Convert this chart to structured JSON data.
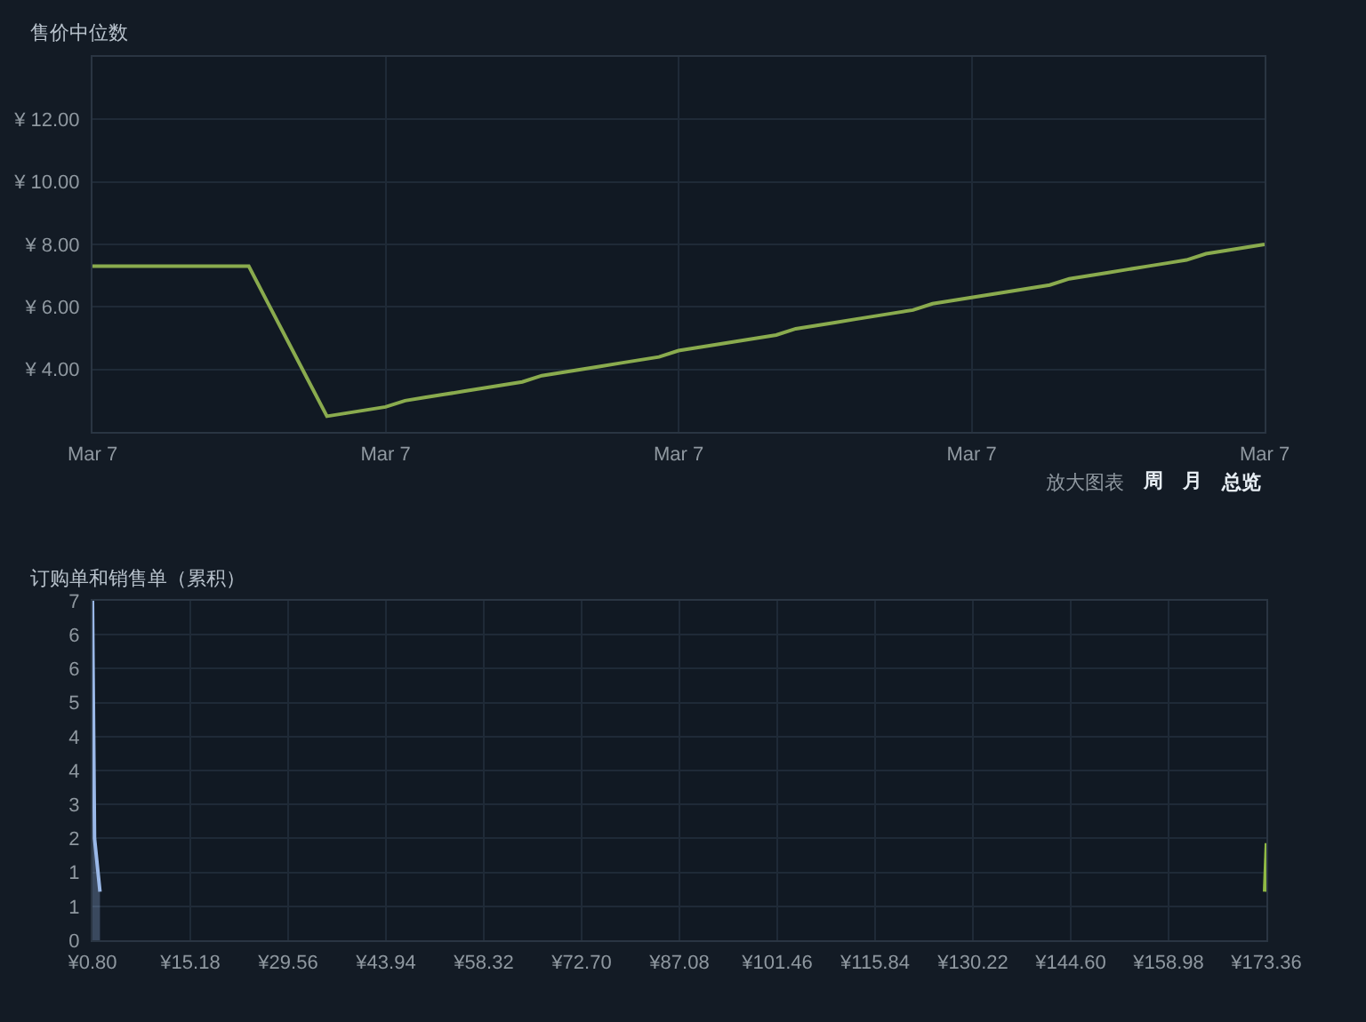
{
  "chart_data": [
    {
      "type": "line",
      "title": "售价中位数",
      "categories": [
        "Mar 7",
        null,
        null,
        null,
        null,
        null,
        null,
        null,
        null,
        null,
        null,
        null,
        null,
        null,
        null,
        "Mar 7",
        null,
        null,
        null,
        null,
        null,
        null,
        null,
        null,
        null,
        null,
        null,
        null,
        null,
        null,
        "Mar 7",
        null,
        null,
        null,
        null,
        null,
        null,
        null,
        null,
        null,
        null,
        null,
        null,
        null,
        null,
        "Mar 7",
        null,
        null,
        null,
        null,
        null,
        null,
        null,
        null,
        null,
        null,
        null,
        null,
        null,
        null,
        "Mar 7"
      ],
      "series": [
        {
          "color": "#8aab4e",
          "values": [
            7.3,
            7.3,
            7.3,
            7.3,
            7.3,
            7.3,
            7.3,
            7.3,
            7.3,
            6.1,
            4.9,
            3.7,
            2.5,
            2.6,
            2.7,
            2.8,
            3.0,
            3.1,
            3.2,
            3.3,
            3.4,
            3.5,
            3.6,
            3.8,
            3.9,
            4.0,
            4.1,
            4.2,
            4.3,
            4.4,
            4.6,
            4.7,
            4.8,
            4.9,
            5.0,
            5.1,
            5.3,
            5.4,
            5.5,
            5.6,
            5.7,
            5.8,
            5.9,
            6.1,
            6.2,
            6.3,
            6.4,
            6.5,
            6.6,
            6.7,
            6.9,
            7.0,
            7.1,
            7.2,
            7.3,
            7.4,
            7.5,
            7.7,
            7.8,
            7.9,
            8.0
          ]
        }
      ],
      "ylim": [
        2,
        14
      ],
      "yticks": [
        {
          "value": 4,
          "label": "¥ 4.00"
        },
        {
          "value": 6,
          "label": "¥ 6.00"
        },
        {
          "value": 8,
          "label": "¥ 8.00"
        },
        {
          "value": 10,
          "label": "¥ 10.00"
        },
        {
          "value": 12,
          "label": "¥ 12.00"
        }
      ],
      "grid": true,
      "annotations": [
        "放大图表",
        "周",
        "月",
        "总览"
      ]
    },
    {
      "type": "line",
      "title": "订购单和销售单（累积）",
      "series": [
        {
          "type": "area",
          "color": "#9ab8e8",
          "x": [
            0.8,
            1.1,
            1.9
          ],
          "values": [
            7,
            2.1,
            1
          ]
        },
        {
          "type": "line",
          "color": "#8fb944",
          "x": [
            173.1,
            173.36
          ],
          "values": [
            1,
            2
          ]
        }
      ],
      "xlim": [
        0.8,
        173.36
      ],
      "xticks": [
        {
          "value": 0.8,
          "label": "¥0.80"
        },
        {
          "value": 15.18,
          "label": "¥15.18"
        },
        {
          "value": 29.56,
          "label": "¥29.56"
        },
        {
          "value": 43.94,
          "label": "¥43.94"
        },
        {
          "value": 58.32,
          "label": "¥58.32"
        },
        {
          "value": 72.7,
          "label": "¥72.70"
        },
        {
          "value": 87.08,
          "label": "¥87.08"
        },
        {
          "value": 101.46,
          "label": "¥101.46"
        },
        {
          "value": 115.84,
          "label": "¥115.84"
        },
        {
          "value": 130.22,
          "label": "¥130.22"
        },
        {
          "value": 144.6,
          "label": "¥144.60"
        },
        {
          "value": 158.98,
          "label": "¥158.98"
        },
        {
          "value": 173.36,
          "label": "¥173.36"
        }
      ],
      "ylim": [
        0,
        7
      ],
      "yticks": [
        0,
        {
          "value": 0.7,
          "label": "1"
        },
        {
          "value": 1.4,
          "label": "1"
        },
        {
          "value": 2.1,
          "label": "2"
        },
        {
          "value": 2.8,
          "label": "3"
        },
        {
          "value": 3.5,
          "label": "4"
        },
        {
          "value": 4.2,
          "label": "4"
        },
        {
          "value": 4.9,
          "label": "5"
        },
        {
          "value": 5.6,
          "label": "6"
        },
        {
          "value": 6.3,
          "label": "6"
        },
        7
      ],
      "grid": true
    }
  ]
}
